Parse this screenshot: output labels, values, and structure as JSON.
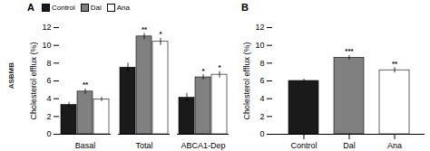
{
  "chart_data": [
    {
      "type": "bar",
      "title": "A",
      "categories": [
        "Basal",
        "Total",
        "ABCA1-Dep"
      ],
      "series": [
        {
          "name": "Control",
          "color": "#1a1a1a",
          "values": [
            3.3,
            7.5,
            4.1
          ],
          "errors": [
            0.3,
            0.5,
            0.5
          ],
          "significance": [
            null,
            null,
            null
          ]
        },
        {
          "name": "Dal",
          "color": "#808080",
          "values": [
            4.8,
            11.0,
            6.4
          ],
          "errors": [
            0.3,
            0.35,
            0.3
          ],
          "significance": [
            "**",
            "**",
            "*"
          ]
        },
        {
          "name": "Ana",
          "color": "#ffffff",
          "values": [
            3.9,
            10.4,
            6.7
          ],
          "errors": [
            0.25,
            0.4,
            0.35
          ],
          "significance": [
            null,
            "*",
            "*"
          ]
        }
      ],
      "ylabel": "Cholesterol efflux (%)",
      "ylim": [
        0,
        12
      ],
      "yticks": [
        0,
        2,
        4,
        6,
        8,
        10,
        12
      ],
      "legend": "upper left",
      "annotations": [
        "ASBMB"
      ]
    },
    {
      "type": "bar",
      "title": "B",
      "categories": [
        "Control",
        "Dal",
        "Ana"
      ],
      "values": [
        6.0,
        8.6,
        7.2
      ],
      "errors": [
        0.2,
        0.25,
        0.3
      ],
      "significance": [
        null,
        "***",
        "**"
      ],
      "colors": [
        "#1a1a1a",
        "#808080",
        "#ffffff"
      ],
      "ylabel": "Cholesterol efflux (%)",
      "ylim": [
        0,
        12
      ],
      "yticks": [
        0,
        2,
        4,
        6,
        8,
        10,
        12
      ]
    }
  ]
}
